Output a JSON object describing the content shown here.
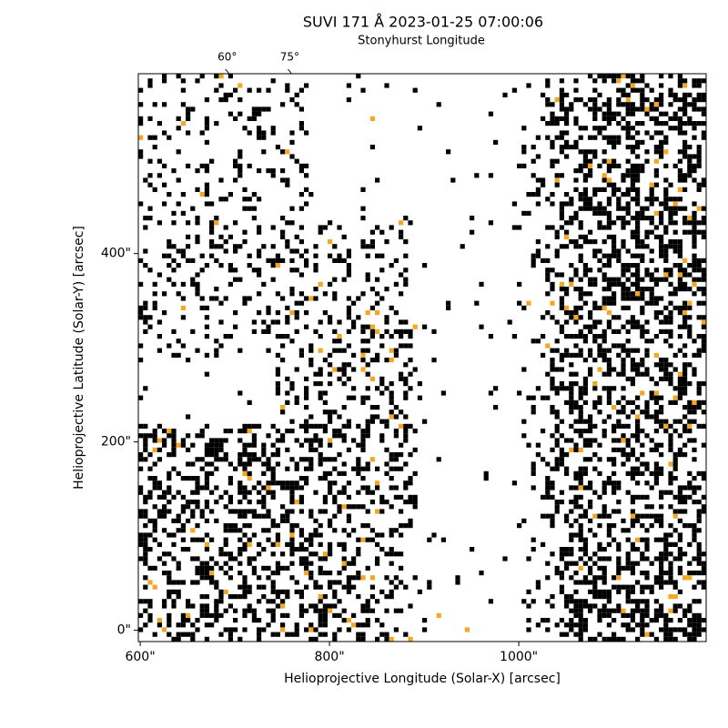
{
  "chart_data": {
    "type": "image",
    "title": "SUVI 171 Å 2023-01-25 07:00:06",
    "xlabel": "Helioprojective Longitude (Solar-X) [arcsec]",
    "ylabel": "Helioprojective Latitude (Solar-Y) [arcsec]",
    "top_axis_label": "Stonyhurst Longitude",
    "xlim": [
      598,
      1198
    ],
    "ylim": [
      -12,
      591
    ],
    "xticks": [
      {
        "value": 600,
        "label": "600\""
      },
      {
        "value": 800,
        "label": "800\""
      },
      {
        "value": 1000,
        "label": "1000\""
      }
    ],
    "yticks": [
      {
        "value": 0,
        "label": "0\""
      },
      {
        "value": 200,
        "label": "200\""
      },
      {
        "value": 400,
        "label": "400\""
      }
    ],
    "top_ticks": [
      {
        "value": 692,
        "label": "60°"
      },
      {
        "value": 758,
        "label": "75°"
      }
    ]
  }
}
